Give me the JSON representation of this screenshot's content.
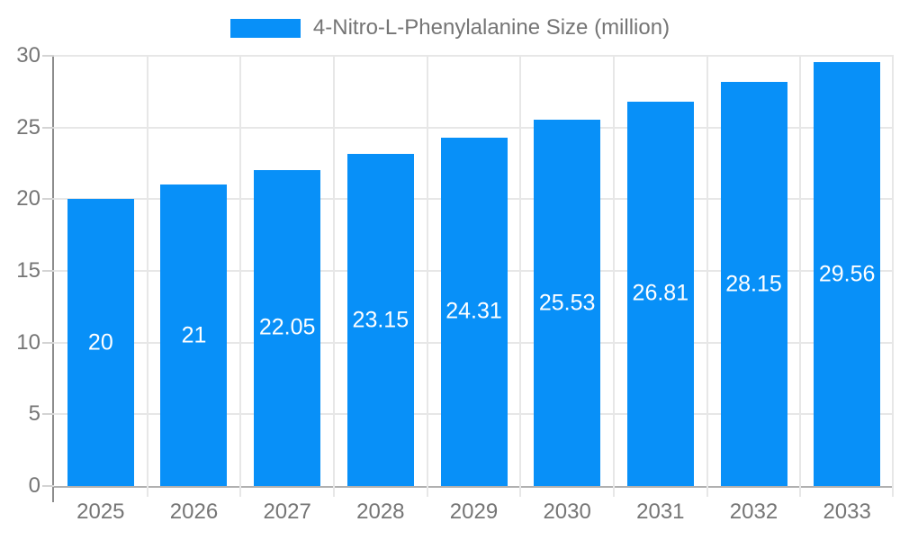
{
  "chart_data": {
    "type": "bar",
    "legend": "4-Nitro-L-Phenylalanine Size (million)",
    "legend_position": "top",
    "categories": [
      "2025",
      "2026",
      "2027",
      "2028",
      "2029",
      "2030",
      "2031",
      "2032",
      "2033"
    ],
    "values": [
      20,
      21,
      22.05,
      23.15,
      24.31,
      25.53,
      26.81,
      28.15,
      29.56
    ],
    "value_labels": [
      "20",
      "21",
      "22.05",
      "23.15",
      "24.31",
      "25.53",
      "26.81",
      "28.15",
      "29.56"
    ],
    "y_ticks": [
      0,
      5,
      10,
      15,
      20,
      25,
      30
    ],
    "ylim": [
      0,
      30
    ],
    "xlabel": "",
    "ylabel": "",
    "grid": true,
    "colors": {
      "bar": "#0890f8",
      "bar_value_text": "#ffffff",
      "axis_text": "#757575",
      "gridline": "#e7e7e7",
      "baseline": "#b0b0b0",
      "y_axis_line": "#8c8c8c",
      "background": "#ffffff"
    }
  }
}
